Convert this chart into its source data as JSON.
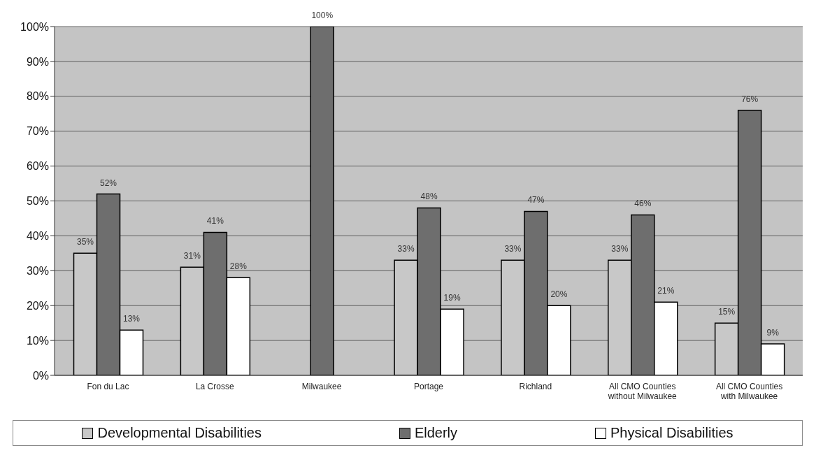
{
  "chart_data": {
    "type": "bar",
    "categories": [
      "Fon du Lac",
      "La Crosse",
      "Milwaukee",
      "Portage",
      "Richland",
      "All CMO Counties without Milwaukee",
      "All CMO Counties with Milwaukee"
    ],
    "series": [
      {
        "name": "Developmental Disabilities",
        "color": "#c8c8c8",
        "values": [
          35,
          31,
          null,
          33,
          33,
          33,
          15
        ],
        "value_labels": [
          "35%",
          "31%",
          null,
          "33%",
          "33%",
          "33%",
          "15%"
        ]
      },
      {
        "name": "Elderly",
        "color": "#6e6e6e",
        "values": [
          52,
          41,
          100,
          48,
          47,
          46,
          76
        ],
        "value_labels": [
          "52%",
          "41%",
          "100%",
          "48%",
          "47%",
          "46%",
          "76%"
        ]
      },
      {
        "name": "Physical Disabilities",
        "color": "#ffffff",
        "values": [
          13,
          28,
          null,
          19,
          20,
          21,
          9
        ],
        "value_labels": [
          "13%",
          "28%",
          null,
          "19%",
          "20%",
          "21%",
          "9%"
        ]
      }
    ],
    "ylim": [
      0,
      100
    ],
    "yticks": [
      {
        "value": 0,
        "label": "0%"
      },
      {
        "value": 10,
        "label": "10%"
      },
      {
        "value": 20,
        "label": "20%"
      },
      {
        "value": 30,
        "label": "30%"
      },
      {
        "value": 40,
        "label": "40%"
      },
      {
        "value": 50,
        "label": "50%"
      },
      {
        "value": 60,
        "label": "60%"
      },
      {
        "value": 70,
        "label": "70%"
      },
      {
        "value": 80,
        "label": "80%"
      },
      {
        "value": 90,
        "label": "90%"
      },
      {
        "value": 100,
        "label": "100%"
      }
    ],
    "grid": "y",
    "legend": "bottom"
  }
}
